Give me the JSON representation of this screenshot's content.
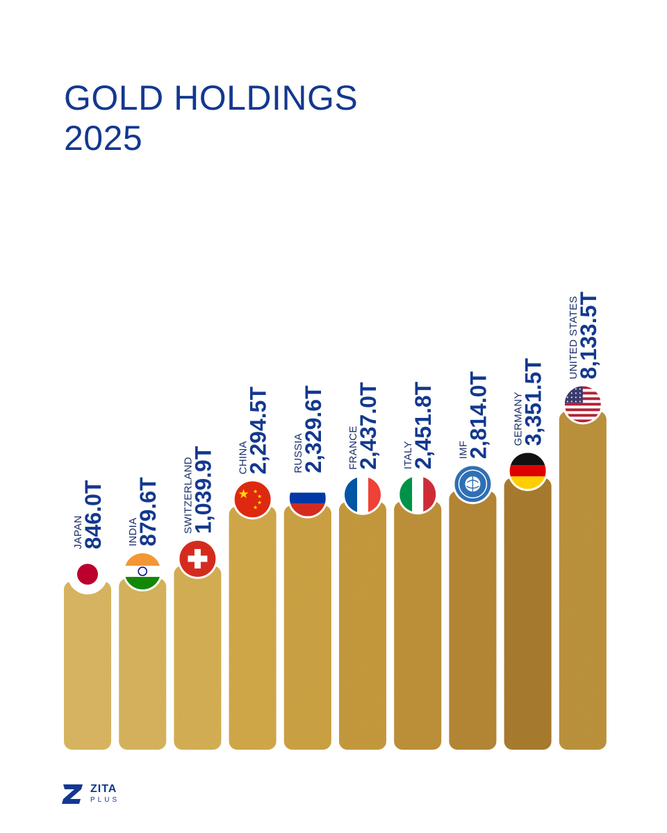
{
  "title": {
    "line1": "GOLD HOLDINGS",
    "line2": "2025"
  },
  "chart_data": {
    "type": "bar",
    "title": "GOLD HOLDINGS 2025",
    "unit": "T",
    "categories": [
      "JAPAN",
      "INDIA",
      "SWITZERLAND",
      "CHINA",
      "RUSSIA",
      "FRANCE",
      "ITALY",
      "IMF",
      "GERMANY",
      "UNITED STATES"
    ],
    "values": [
      846.0,
      879.6,
      1039.9,
      2294.5,
      2329.6,
      2437.0,
      2451.8,
      2814.0,
      3351.5,
      8133.5
    ],
    "value_labels": [
      "846.0T",
      "879.6T",
      "1,039.9T",
      "2,294.5T",
      "2,329.6T",
      "2,437.0T",
      "2,451.8T",
      "2,814.0T",
      "3,351.5T",
      "8,133.5T"
    ],
    "flags": [
      "japan-flag",
      "india-flag",
      "switzerland-flag",
      "china-flag",
      "russia-flag",
      "france-flag",
      "italy-flag",
      "imf-logo",
      "germany-flag",
      "united-states-flag"
    ],
    "bar_colors": [
      "#e2bd68",
      "#e0ba62",
      "#ddb558",
      "#d9ad4c",
      "#d3a545",
      "#cb9b3e",
      "#c29038",
      "#b78431",
      "#a87629",
      "#c0923a"
    ]
  },
  "logo": {
    "name": "ZITA",
    "sub": "PLUS"
  },
  "colors": {
    "title": "#13388f",
    "accent": "#1b2f6a"
  }
}
